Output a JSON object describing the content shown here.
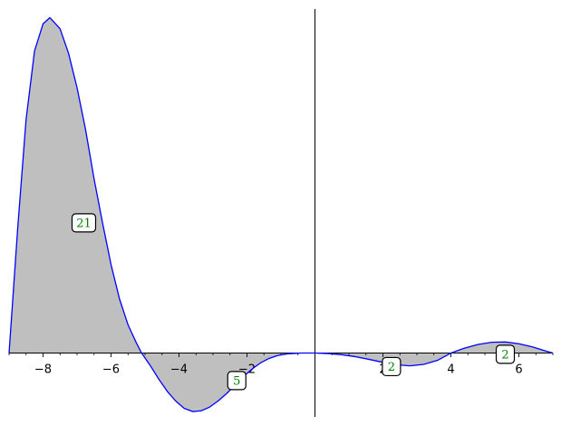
{
  "chart_data": {
    "type": "area",
    "title": "",
    "xlabel": "",
    "ylabel": "",
    "xlim": [
      -9.0,
      7.0
    ],
    "ylim": [
      -2.6,
      14.0
    ],
    "x_ticks_major": [
      -8,
      -6,
      -4,
      -2,
      2,
      4,
      6
    ],
    "x_tick_labels": [
      "−8",
      "−6",
      "−4",
      "−2",
      "2",
      "4",
      "6"
    ],
    "x_ticks_minor_step": 0.5,
    "grid": false,
    "axes_style": "origin-crossing",
    "series": [
      {
        "color": "#0000ff",
        "fill_color": "#bfbfbf",
        "fill_to": 0,
        "points": [
          {
            "x": -9.0,
            "y": 0.0
          },
          {
            "x": -8.75,
            "y": 5.0
          },
          {
            "x": -8.5,
            "y": 9.5
          },
          {
            "x": -8.25,
            "y": 12.3
          },
          {
            "x": -8.0,
            "y": 13.4
          },
          {
            "x": -7.8,
            "y": 13.65
          },
          {
            "x": -7.5,
            "y": 13.2
          },
          {
            "x": -7.25,
            "y": 12.2
          },
          {
            "x": -7.0,
            "y": 10.8
          },
          {
            "x": -6.75,
            "y": 9.1
          },
          {
            "x": -6.5,
            "y": 7.1
          },
          {
            "x": -6.25,
            "y": 5.3
          },
          {
            "x": -6.0,
            "y": 3.6
          },
          {
            "x": -5.75,
            "y": 2.2
          },
          {
            "x": -5.5,
            "y": 1.15
          },
          {
            "x": -5.25,
            "y": 0.4
          },
          {
            "x": -5.1,
            "y": 0.0
          },
          {
            "x": -4.85,
            "y": -0.5
          },
          {
            "x": -4.6,
            "y": -1.05
          },
          {
            "x": -4.35,
            "y": -1.55
          },
          {
            "x": -4.1,
            "y": -1.95
          },
          {
            "x": -3.85,
            "y": -2.25
          },
          {
            "x": -3.6,
            "y": -2.38
          },
          {
            "x": -3.35,
            "y": -2.35
          },
          {
            "x": -3.1,
            "y": -2.2
          },
          {
            "x": -2.85,
            "y": -1.95
          },
          {
            "x": -2.6,
            "y": -1.65
          },
          {
            "x": -2.35,
            "y": -1.3
          },
          {
            "x": -2.1,
            "y": -0.95
          },
          {
            "x": -1.85,
            "y": -0.65
          },
          {
            "x": -1.6,
            "y": -0.4
          },
          {
            "x": -1.35,
            "y": -0.22
          },
          {
            "x": -1.1,
            "y": -0.1
          },
          {
            "x": -0.8,
            "y": -0.03
          },
          {
            "x": -0.4,
            "y": 0.0
          },
          {
            "x": 0.0,
            "y": 0.0
          },
          {
            "x": 0.4,
            "y": -0.02
          },
          {
            "x": 0.8,
            "y": -0.07
          },
          {
            "x": 1.2,
            "y": -0.15
          },
          {
            "x": 1.6,
            "y": -0.26
          },
          {
            "x": 2.0,
            "y": -0.38
          },
          {
            "x": 2.4,
            "y": -0.48
          },
          {
            "x": 2.8,
            "y": -0.52
          },
          {
            "x": 3.2,
            "y": -0.46
          },
          {
            "x": 3.6,
            "y": -0.3
          },
          {
            "x": 4.0,
            "y": 0.0
          },
          {
            "x": 4.4,
            "y": 0.2
          },
          {
            "x": 4.8,
            "y": 0.35
          },
          {
            "x": 5.2,
            "y": 0.44
          },
          {
            "x": 5.6,
            "y": 0.45
          },
          {
            "x": 6.0,
            "y": 0.38
          },
          {
            "x": 6.4,
            "y": 0.25
          },
          {
            "x": 6.8,
            "y": 0.08
          },
          {
            "x": 7.0,
            "y": 0.0
          }
        ]
      }
    ],
    "annotations": [
      {
        "text": "21",
        "x": -6.8,
        "y": 5.3,
        "color": "#008000"
      },
      {
        "text": "5",
        "x": -2.3,
        "y": -1.12,
        "color": "#008000"
      },
      {
        "text": "2",
        "x": 2.25,
        "y": -0.55,
        "color": "#008000"
      },
      {
        "text": "2",
        "x": 5.6,
        "y": -0.05,
        "color": "#008000"
      }
    ]
  }
}
